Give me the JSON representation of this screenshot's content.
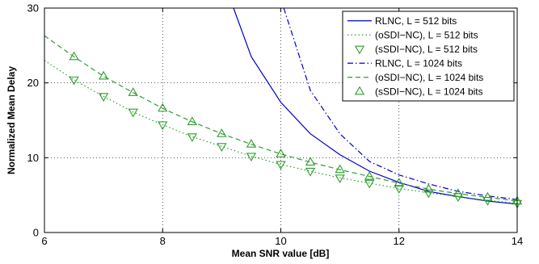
{
  "chart_data": {
    "type": "line",
    "title": "",
    "xlabel": "Mean SNR value [dB]",
    "ylabel": "Normalized Mean Delay",
    "xlim": [
      6,
      14
    ],
    "ylim": [
      0,
      30
    ],
    "xticks": [
      6,
      8,
      10,
      12,
      14
    ],
    "yticks": [
      0,
      10,
      20,
      30
    ],
    "grid": true,
    "legend_position": "top-right",
    "series": [
      {
        "name": "RLNC, L = 512 bits",
        "color": "#0000cc",
        "line": "solid",
        "marker": "none",
        "x": [
          9.2,
          9.5,
          10.0,
          10.5,
          11.0,
          11.5,
          12.0,
          12.5,
          13.0,
          13.5,
          14.0
        ],
        "y": [
          30.0,
          23.5,
          17.4,
          13.2,
          10.4,
          8.2,
          6.7,
          5.5,
          4.8,
          4.2,
          3.8
        ]
      },
      {
        "name": "(oSDI−NC), L = 512 bits",
        "color": "#2e9e2e",
        "line": "dotted",
        "marker": "none",
        "x": [
          6.0,
          6.5,
          7.0,
          7.5,
          8.0,
          8.5,
          9.0,
          9.5,
          10.0,
          10.5,
          11.0,
          11.5,
          12.0,
          12.5,
          13.0,
          13.5,
          14.0
        ],
        "y": [
          23.0,
          20.4,
          18.2,
          16.1,
          14.4,
          12.8,
          11.5,
          10.2,
          9.1,
          8.2,
          7.3,
          6.6,
          5.9,
          5.3,
          4.8,
          4.3,
          3.9
        ]
      },
      {
        "name": "(sSDI−NC), L = 512 bits",
        "color": "#2e9e2e",
        "line": "none",
        "marker": "triangle-down",
        "x": [
          6.5,
          7.0,
          7.5,
          8.0,
          8.5,
          9.0,
          9.5,
          10.0,
          10.5,
          11.0,
          11.5,
          12.0,
          12.5,
          13.0,
          13.5,
          14.0
        ],
        "y": [
          20.4,
          18.2,
          16.1,
          14.4,
          12.8,
          11.5,
          10.2,
          9.1,
          8.2,
          7.3,
          6.6,
          5.9,
          5.3,
          4.8,
          4.3,
          3.9
        ]
      },
      {
        "name": "RLNC, L = 1024 bits",
        "color": "#0000cc",
        "line": "dashdot",
        "marker": "none",
        "x": [
          10.05,
          10.5,
          11.0,
          11.5,
          12.0,
          12.5,
          13.0,
          13.5,
          14.0
        ],
        "y": [
          30.0,
          19.0,
          13.2,
          9.5,
          7.7,
          6.5,
          5.5,
          4.9,
          4.4
        ]
      },
      {
        "name": "(oSDI−NC), L = 1024 bits",
        "color": "#2e9e2e",
        "line": "dashed",
        "marker": "none",
        "x": [
          6.0,
          6.5,
          7.0,
          7.5,
          8.0,
          8.5,
          9.0,
          9.5,
          10.0,
          10.5,
          11.0,
          11.5,
          12.0,
          12.5,
          13.0,
          13.5,
          14.0
        ],
        "y": [
          26.3,
          23.5,
          20.9,
          18.7,
          16.6,
          14.8,
          13.2,
          11.8,
          10.5,
          9.4,
          8.4,
          7.5,
          6.6,
          5.8,
          5.2,
          4.7,
          4.2
        ]
      },
      {
        "name": "(sSDI−NC), L = 1024 bits",
        "color": "#2e9e2e",
        "line": "none",
        "marker": "triangle-up",
        "x": [
          6.5,
          7.0,
          7.5,
          8.0,
          8.5,
          9.0,
          9.5,
          10.0,
          10.5,
          11.0,
          11.5,
          12.0,
          12.5,
          13.0,
          13.5,
          14.0
        ],
        "y": [
          23.5,
          20.9,
          18.7,
          16.6,
          14.8,
          13.2,
          11.8,
          10.5,
          9.4,
          8.4,
          7.5,
          6.6,
          5.8,
          5.2,
          4.7,
          4.2
        ]
      }
    ]
  }
}
